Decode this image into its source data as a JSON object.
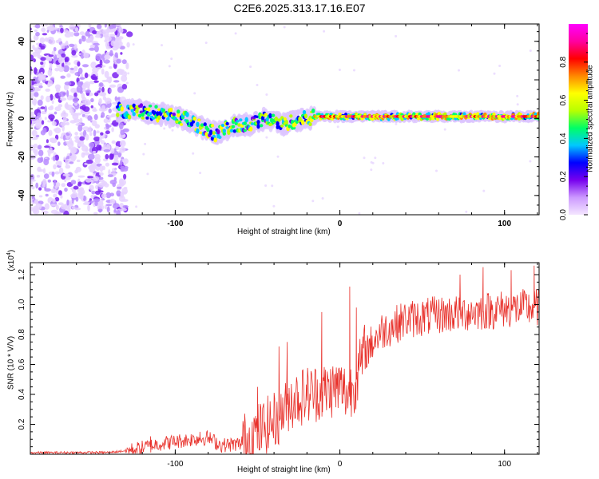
{
  "title": "C2E6.2025.313.17.16.E07",
  "colors": {
    "snr_line": "#e8302a"
  },
  "chart_data": [
    {
      "type": "heatmap",
      "name": "spectrogram",
      "xlabel": "Height of straight line (km)",
      "ylabel": "Frequency (Hz)",
      "xlim": [
        -188,
        121
      ],
      "ylim": [
        -50,
        49
      ],
      "xticks": [
        -100,
        0,
        100
      ],
      "yticks": [
        -40,
        -20,
        0,
        20,
        40
      ],
      "xtick_labels": [
        "-100",
        "0",
        "100"
      ],
      "ytick_labels": [
        "-40",
        "-20",
        "0",
        "20",
        "40"
      ],
      "colorbar": {
        "label": "Normalized spectral amplitude",
        "range": [
          0,
          1
        ],
        "ticks": [
          0,
          0.2,
          0.4,
          0.6,
          0.8
        ],
        "tick_labels": [
          "0.0",
          "0.2",
          "0.4",
          "0.6",
          "0.8"
        ],
        "stops": [
          "#f4e6ff",
          "#cc99ff",
          "#7700ee",
          "#0000ff",
          "#00c8ff",
          "#00ff66",
          "#b8ff00",
          "#ffff00",
          "#ff8800",
          "#ff0000",
          "#ff00a0",
          "#ff00ff"
        ]
      },
      "noise_region_x": [
        -188,
        -130
      ],
      "ridge": [
        {
          "x": -135,
          "f": 4
        },
        {
          "x": -125,
          "f": 4
        },
        {
          "x": -115,
          "f": 3
        },
        {
          "x": -105,
          "f": 2
        },
        {
          "x": -95,
          "f": 0
        },
        {
          "x": -85,
          "f": -4
        },
        {
          "x": -75,
          "f": -8
        },
        {
          "x": -65,
          "f": -4
        },
        {
          "x": -55,
          "f": -3
        },
        {
          "x": -45,
          "f": 0
        },
        {
          "x": -35,
          "f": -3
        },
        {
          "x": -25,
          "f": -1
        },
        {
          "x": -15,
          "f": 1
        },
        {
          "x": 0,
          "f": 1
        },
        {
          "x": 20,
          "f": 1
        },
        {
          "x": 60,
          "f": 1
        },
        {
          "x": 100,
          "f": 1
        },
        {
          "x": 121,
          "f": 1
        }
      ]
    },
    {
      "type": "line",
      "name": "snr",
      "xlabel": "Height of straight line (km)",
      "ylabel": "SNR (10 * V/V)",
      "scale_label_base": "(x10",
      "scale_label_exp": "4",
      "scale_label_close": ")",
      "xlim": [
        -188,
        121
      ],
      "ylim": [
        0,
        1.28
      ],
      "xticks": [
        -100,
        0,
        100
      ],
      "yticks": [
        0.2,
        0.4,
        0.6,
        0.8,
        1.0,
        1.2
      ],
      "xtick_labels": [
        "-100",
        "0",
        "100"
      ],
      "ytick_labels": [
        "0.2",
        "0.4",
        "0.6",
        "0.8",
        "1.0",
        "1.2"
      ],
      "trend": [
        {
          "x": -188,
          "y": 0.01
        },
        {
          "x": -140,
          "y": 0.012
        },
        {
          "x": -125,
          "y": 0.03
        },
        {
          "x": -110,
          "y": 0.07
        },
        {
          "x": -90,
          "y": 0.1
        },
        {
          "x": -80,
          "y": 0.11
        },
        {
          "x": -72,
          "y": 0.06
        },
        {
          "x": -60,
          "y": 0.07
        },
        {
          "x": -50,
          "y": 0.15
        },
        {
          "x": -40,
          "y": 0.22
        },
        {
          "x": -30,
          "y": 0.36
        },
        {
          "x": -20,
          "y": 0.4
        },
        {
          "x": -10,
          "y": 0.42
        },
        {
          "x": 0,
          "y": 0.45
        },
        {
          "x": 5,
          "y": 0.4
        },
        {
          "x": 10,
          "y": 0.5
        },
        {
          "x": 15,
          "y": 0.68
        },
        {
          "x": 25,
          "y": 0.82
        },
        {
          "x": 40,
          "y": 0.9
        },
        {
          "x": 60,
          "y": 0.93
        },
        {
          "x": 80,
          "y": 0.95
        },
        {
          "x": 100,
          "y": 0.97
        },
        {
          "x": 121,
          "y": 0.98
        }
      ],
      "spikes": [
        {
          "x": -115,
          "y": 0.12
        },
        {
          "x": -85,
          "y": 0.15
        },
        {
          "x": -50,
          "y": 0.45
        },
        {
          "x": -37,
          "y": 0.72
        },
        {
          "x": -32,
          "y": 0.75
        },
        {
          "x": -11,
          "y": 0.95
        },
        {
          "x": 6,
          "y": 1.12
        },
        {
          "x": 10,
          "y": 0.98
        },
        {
          "x": 73,
          "y": 1.2
        },
        {
          "x": 87,
          "y": 1.25
        },
        {
          "x": 104,
          "y": 1.23
        },
        {
          "x": 118,
          "y": 1.26
        }
      ]
    }
  ]
}
